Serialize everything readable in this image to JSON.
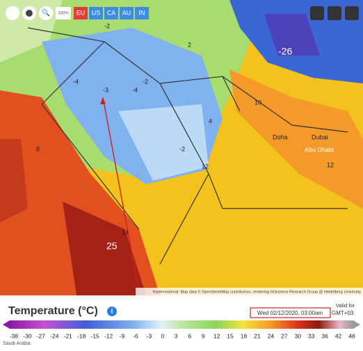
{
  "toolbar": {
    "zoom": "100%",
    "regions": [
      "EU",
      "US",
      "CA",
      "AU",
      "IN"
    ]
  },
  "map": {
    "labels": [
      "-26",
      "25",
      "Doha",
      "Dubai",
      "Abu Dhabi",
      -2,
      -4,
      -4,
      -3,
      -2,
      2,
      10,
      12,
      14,
      8,
      12,
      -2,
      4
    ],
    "attribution": "Kartenmaterial: Map data © OpenStreetMap contributors, rendering GIScience Research Group @ Heidelberg University"
  },
  "legend": {
    "title": "Temperature (°C)",
    "valid_label": "Valid for",
    "valid_time": "Wed 02/12/2020, 03:00am",
    "timezone": "GMT+03",
    "scale": [
      -38,
      -30,
      -27,
      -24,
      -21,
      -18,
      -15,
      -12,
      -9,
      -6,
      -3,
      0,
      3,
      6,
      9,
      12,
      15,
      18,
      21,
      24,
      27,
      30,
      33,
      36,
      42,
      48
    ]
  },
  "footer": {
    "location": "Saudi Arabia"
  }
}
